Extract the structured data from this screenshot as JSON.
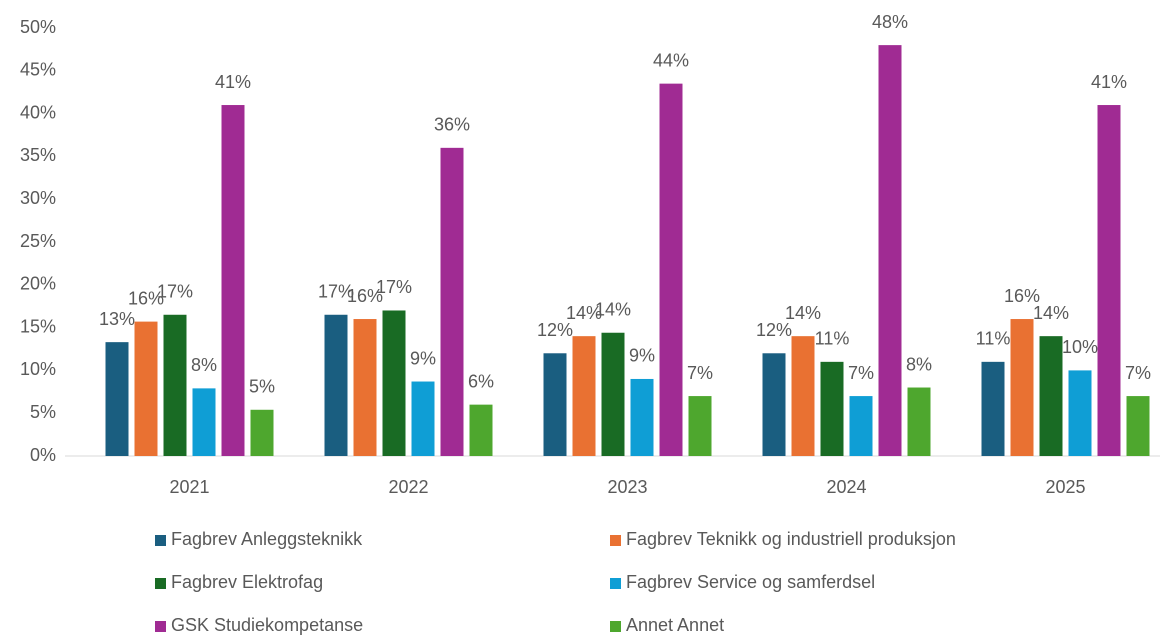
{
  "chart_data": {
    "type": "bar",
    "categories": [
      "2021",
      "2022",
      "2023",
      "2024",
      "2025"
    ],
    "series": [
      {
        "name": "Fagbrev Anleggsteknikk",
        "color": "#1a5e80",
        "values": [
          13.3,
          16.5,
          12,
          12,
          11
        ],
        "value_labels": [
          "13%",
          "17%",
          "12%",
          "12%",
          "11%"
        ]
      },
      {
        "name": "Fagbrev Teknikk og industriell produksjon",
        "color": "#e97132",
        "values": [
          15.7,
          16,
          14,
          14,
          16
        ],
        "value_labels": [
          "16%",
          "16%",
          "14%",
          "14%",
          "16%"
        ]
      },
      {
        "name": "Fagbrev Elektrofag",
        "color": "#196b24",
        "values": [
          16.5,
          17,
          14.4,
          11,
          14
        ],
        "value_labels": [
          "17%",
          "17%",
          "14%",
          "11%",
          "14%"
        ]
      },
      {
        "name": "Fagbrev Service og samferdsel",
        "color": "#0f9ed5",
        "values": [
          7.9,
          8.7,
          9,
          7,
          10
        ],
        "value_labels": [
          "8%",
          "9%",
          "9%",
          "7%",
          "10%"
        ]
      },
      {
        "name": "GSK Studiekompetanse",
        "color": "#a02b93",
        "values": [
          41,
          36,
          43.5,
          48,
          41
        ],
        "value_labels": [
          "41%",
          "36%",
          "44%",
          "48%",
          "41%"
        ]
      },
      {
        "name": "Annet Annet",
        "color": "#4ea72e",
        "values": [
          5.4,
          6,
          7,
          8,
          7
        ],
        "value_labels": [
          "5%",
          "6%",
          "7%",
          "8%",
          "7%"
        ]
      }
    ],
    "ylim": [
      0,
      50
    ],
    "yticks": [
      {
        "value": 0,
        "label": "0%"
      },
      {
        "value": 5,
        "label": "5%"
      },
      {
        "value": 10,
        "label": "10%"
      },
      {
        "value": 15,
        "label": "15%"
      },
      {
        "value": 20,
        "label": "20%"
      },
      {
        "value": 25,
        "label": "25%"
      },
      {
        "value": 30,
        "label": "30%"
      },
      {
        "value": 35,
        "label": "35%"
      },
      {
        "value": 40,
        "label": "40%"
      },
      {
        "value": 45,
        "label": "45%"
      },
      {
        "value": 50,
        "label": "50%"
      }
    ],
    "grid": false,
    "legend": "bottom"
  }
}
